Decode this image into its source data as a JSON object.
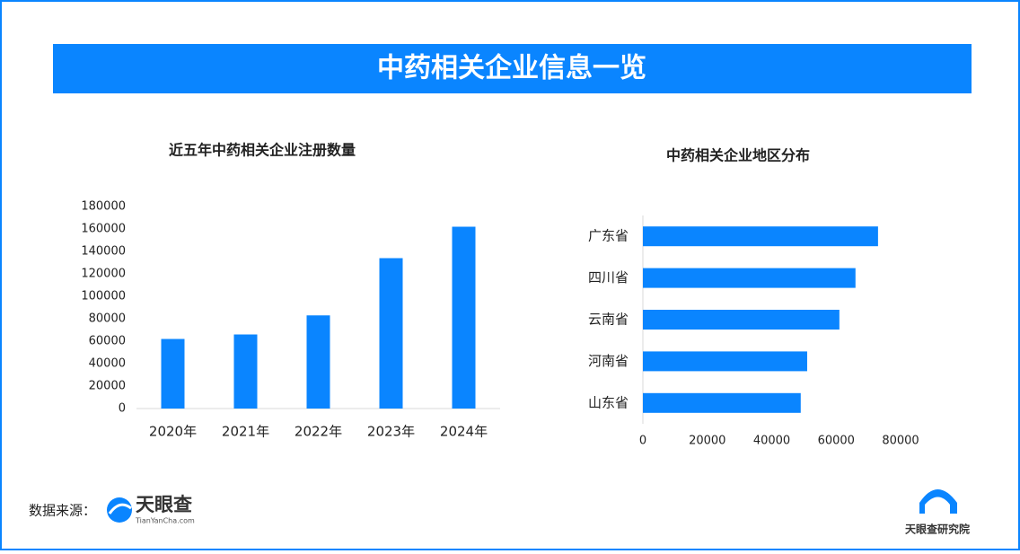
{
  "header": {
    "title": "中药相关企业信息一览"
  },
  "chart_data": [
    {
      "type": "bar",
      "title": "近五年中药相关企业注册数量",
      "categories": [
        "2020年",
        "2021年",
        "2022年",
        "2023年",
        "2024年"
      ],
      "values": [
        62000,
        66000,
        83000,
        134000,
        162000
      ],
      "color": "#0a85ff",
      "ylim": [
        0,
        180000
      ],
      "yticks": [
        0,
        20000,
        40000,
        60000,
        80000,
        100000,
        120000,
        140000,
        160000,
        180000
      ],
      "grid": false
    },
    {
      "type": "barh",
      "title": "中药相关企业地区分布",
      "categories": [
        "广东省",
        "四川省",
        "云南省",
        "河南省",
        "山东省"
      ],
      "values": [
        73000,
        66000,
        61000,
        51000,
        49000
      ],
      "color": "#0a85ff",
      "xlim": [
        0,
        80000
      ],
      "xticks": [
        0,
        20000,
        40000,
        60000,
        80000
      ],
      "grid": false
    }
  ],
  "footer": {
    "source_label": "数据来源：",
    "logo_name": "天眼查",
    "logo_url": "TianYanCha.com",
    "institute": "天眼查研究院"
  }
}
